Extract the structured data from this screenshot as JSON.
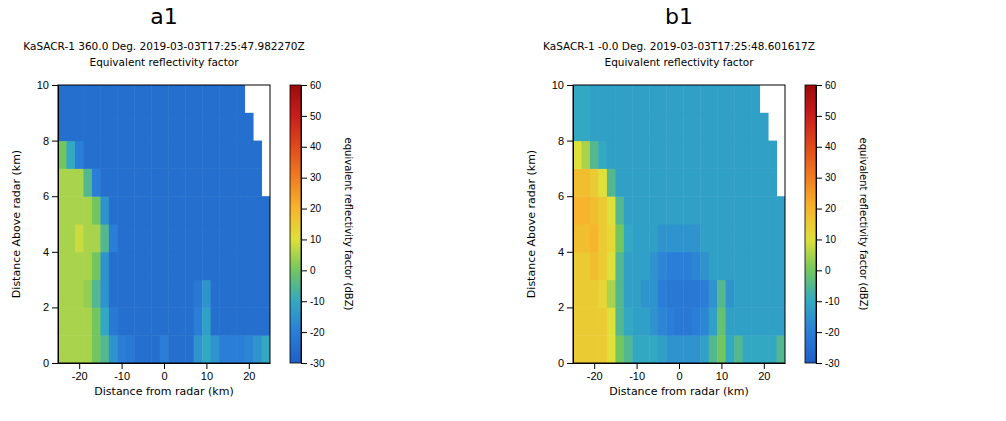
{
  "chart_data": [
    {
      "type": "heatmap",
      "panel": "a1",
      "title": "KaSACR-1 360.0 Deg. 2019-03-03T17:25:47.982270Z",
      "subtitle": "Equivalent reflectivity factor",
      "x_label": "Distance from radar (km)",
      "y_label": "Distance Above radar (km)",
      "xlim": [
        -25,
        25
      ],
      "xticks": [
        -20,
        -10,
        0,
        10,
        20
      ],
      "ylim": [
        0,
        10
      ],
      "yticks": [
        0,
        2,
        4,
        6,
        8,
        10
      ],
      "x_edges": [
        -25,
        -23,
        -21,
        -19,
        -17,
        -15,
        -13,
        -11,
        -9,
        -7,
        -5,
        -3,
        -1,
        1,
        3,
        5,
        7,
        9,
        11,
        13,
        15,
        17,
        19,
        21,
        23,
        25
      ],
      "y_edges": [
        0,
        1,
        2,
        3,
        4,
        5,
        6,
        7,
        8,
        9,
        10
      ],
      "values": [
        [
          5,
          5,
          5,
          5,
          0,
          -5,
          -15,
          -20,
          -22,
          -25,
          -25,
          -25,
          -20,
          -25,
          -25,
          -25,
          -15,
          -10,
          -15,
          -20,
          -20,
          -20,
          -18,
          -15,
          -10
        ],
        [
          5,
          5,
          5,
          5,
          0,
          -10,
          -22,
          -25,
          -25,
          -25,
          -25,
          -25,
          -25,
          -25,
          -25,
          -25,
          -20,
          -12,
          -25,
          -25,
          -25,
          -25,
          -25,
          -25,
          -25
        ],
        [
          5,
          5,
          5,
          3,
          -5,
          -15,
          -25,
          -25,
          -25,
          -25,
          -25,
          -25,
          -25,
          -25,
          -25,
          -25,
          -22,
          -15,
          -25,
          -25,
          -25,
          -25,
          -25,
          -25,
          -25
        ],
        [
          5,
          5,
          5,
          5,
          0,
          -15,
          -25,
          -25,
          -25,
          -25,
          -25,
          -25,
          -25,
          -25,
          -25,
          -25,
          -25,
          -25,
          -25,
          -25,
          -25,
          -25,
          -25,
          -25,
          -25
        ],
        [
          5,
          5,
          8,
          5,
          5,
          -5,
          -20,
          -25,
          -25,
          -25,
          -25,
          -25,
          -25,
          -25,
          -25,
          -25,
          -25,
          -25,
          -25,
          -25,
          -25,
          -25,
          -25,
          -25,
          -25
        ],
        [
          5,
          5,
          5,
          5,
          0,
          -15,
          -25,
          -25,
          -25,
          -25,
          -25,
          -25,
          -25,
          -25,
          -25,
          -25,
          -25,
          -25,
          -25,
          -25,
          -25,
          -25,
          -25,
          -25,
          -25
        ],
        [
          5,
          5,
          5,
          -5,
          -20,
          -25,
          -25,
          -25,
          -25,
          -25,
          -25,
          -25,
          -25,
          -25,
          -25,
          -25,
          -25,
          -25,
          -25,
          -25,
          -25,
          -25,
          -25,
          -25,
          null
        ],
        [
          0,
          -10,
          -20,
          -25,
          -25,
          -25,
          -25,
          -25,
          -25,
          -25,
          -25,
          -25,
          -25,
          -25,
          -25,
          -25,
          -25,
          -25,
          -25,
          -25,
          -25,
          -25,
          -25,
          -25,
          null
        ],
        [
          -25,
          -25,
          -25,
          -25,
          -25,
          -25,
          -25,
          -25,
          -25,
          -25,
          -25,
          -25,
          -25,
          -25,
          -25,
          -25,
          -25,
          -25,
          -25,
          -25,
          -25,
          -25,
          -25,
          null,
          null
        ],
        [
          -25,
          -25,
          -25,
          -25,
          -25,
          -25,
          -25,
          -25,
          -25,
          -25,
          -25,
          -25,
          -25,
          -25,
          -25,
          -25,
          -25,
          -25,
          -25,
          -25,
          -25,
          -25,
          null,
          null,
          null
        ]
      ],
      "colorbar": {
        "range": [
          -30,
          60
        ],
        "ticks": [
          -30,
          -20,
          -10,
          0,
          10,
          20,
          30,
          40,
          50,
          60
        ],
        "label": "equivalent reflectivity factor (dBZ)"
      }
    },
    {
      "type": "heatmap",
      "panel": "b1",
      "title": "KaSACR-1 -0.0 Deg. 2019-03-03T17:25:48.601617Z",
      "subtitle": "Equivalent reflectivity factor",
      "x_label": "Distance from radar (km)",
      "y_label": "Distance Above radar (km)",
      "xlim": [
        -25,
        25
      ],
      "xticks": [
        -20,
        -10,
        0,
        10,
        20
      ],
      "ylim": [
        0,
        10
      ],
      "yticks": [
        0,
        2,
        4,
        6,
        8,
        10
      ],
      "x_edges": [
        -25,
        -23,
        -21,
        -19,
        -17,
        -15,
        -13,
        -11,
        -9,
        -7,
        -5,
        -3,
        -1,
        1,
        3,
        5,
        7,
        9,
        11,
        13,
        15,
        17,
        19,
        21,
        23,
        25
      ],
      "y_edges": [
        0,
        1,
        2,
        3,
        4,
        5,
        6,
        7,
        8,
        9,
        10
      ],
      "values": [
        [
          15,
          15,
          15,
          15,
          10,
          0,
          -5,
          -10,
          -10,
          -10,
          -12,
          -15,
          -15,
          -15,
          -15,
          -12,
          -5,
          0,
          -10,
          -5,
          -10,
          -10,
          -10,
          -10,
          -5
        ],
        [
          15,
          15,
          15,
          15,
          10,
          -5,
          -10,
          -12,
          -12,
          -15,
          -18,
          -20,
          -22,
          -22,
          -20,
          -18,
          -12,
          -2,
          -12,
          -12,
          -12,
          -12,
          -12,
          -12,
          -12
        ],
        [
          15,
          15,
          15,
          12,
          5,
          -5,
          -12,
          -12,
          -15,
          -15,
          -20,
          -22,
          -22,
          -22,
          -22,
          -20,
          -15,
          -5,
          -15,
          -12,
          -12,
          -12,
          -12,
          -12,
          -12
        ],
        [
          15,
          15,
          18,
          15,
          10,
          -5,
          -12,
          -12,
          -12,
          -15,
          -18,
          -20,
          -20,
          -20,
          -18,
          -15,
          -12,
          -12,
          -12,
          -12,
          -12,
          -12,
          -12,
          -12,
          -12
        ],
        [
          18,
          18,
          20,
          15,
          12,
          0,
          -10,
          -12,
          -12,
          -12,
          -15,
          -15,
          -15,
          -15,
          -15,
          -12,
          -12,
          -12,
          -12,
          -12,
          -12,
          -12,
          -12,
          -12,
          -12
        ],
        [
          20,
          20,
          18,
          15,
          10,
          -5,
          -12,
          -12,
          -12,
          -12,
          -12,
          -12,
          -12,
          -12,
          -12,
          -12,
          -12,
          -12,
          -12,
          -12,
          -12,
          -12,
          -12,
          -12,
          -12
        ],
        [
          18,
          18,
          15,
          10,
          -5,
          -12,
          -12,
          -12,
          -12,
          -12,
          -12,
          -12,
          -12,
          -12,
          -12,
          -12,
          -12,
          -12,
          -12,
          -12,
          -12,
          -12,
          -12,
          -12,
          null
        ],
        [
          10,
          5,
          -5,
          -10,
          -12,
          -12,
          -12,
          -12,
          -12,
          -12,
          -12,
          -12,
          -12,
          -12,
          -12,
          -12,
          -12,
          -12,
          -12,
          -12,
          -12,
          -12,
          -12,
          -12,
          null
        ],
        [
          -10,
          -10,
          -12,
          -12,
          -12,
          -12,
          -12,
          -12,
          -12,
          -12,
          -12,
          -12,
          -12,
          -12,
          -12,
          -12,
          -12,
          -12,
          -12,
          -12,
          -12,
          -12,
          -12,
          null,
          null
        ],
        [
          -10,
          -10,
          -12,
          -12,
          -12,
          -12,
          -12,
          -12,
          -12,
          -12,
          -12,
          -12,
          -12,
          -12,
          -12,
          -12,
          -12,
          -12,
          -12,
          -12,
          -12,
          -12,
          null,
          null,
          null
        ]
      ],
      "colorbar": {
        "range": [
          -30,
          60
        ],
        "ticks": [
          -30,
          -20,
          -10,
          0,
          10,
          20,
          30,
          40,
          50,
          60
        ],
        "label": "equivalent reflectivity factor (dBZ)"
      }
    }
  ]
}
